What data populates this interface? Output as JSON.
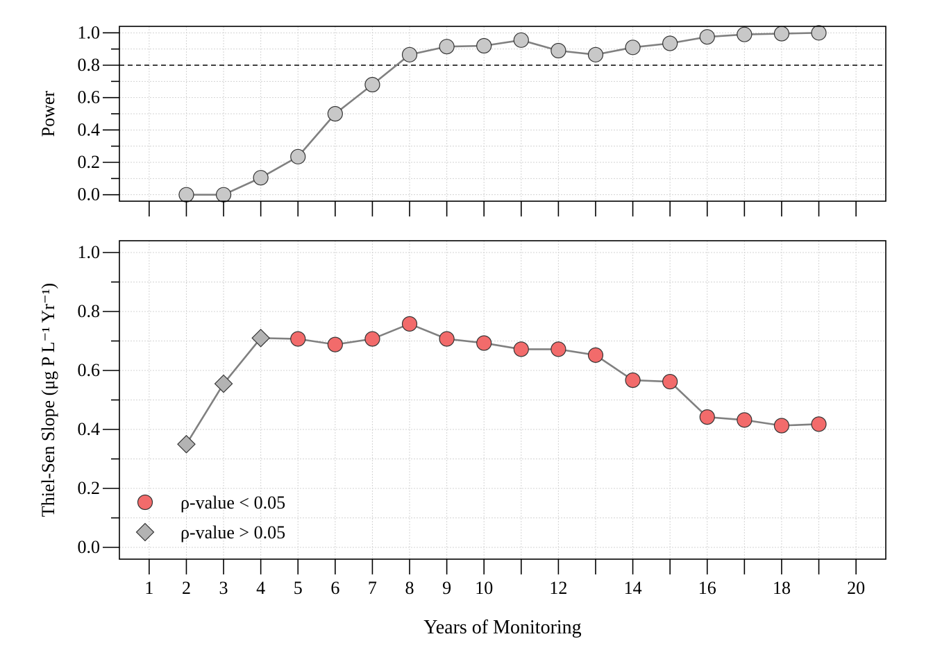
{
  "colors": {
    "significant_fill": "#F26B6B",
    "nonsignificant_fill": "#B3B3B3",
    "power_fill": "#C8C8C8",
    "line": "#808080",
    "grid": "#D3D3D3"
  },
  "chart_data": [
    {
      "type": "line",
      "ylabel": "Power",
      "xlabel": "",
      "xlim": [
        0.2,
        20.8
      ],
      "ylim": [
        -0.04,
        1.04
      ],
      "y_ticks": [
        "0.0",
        "0.2",
        "0.4",
        "0.6",
        "0.8",
        "1.0"
      ],
      "y_tick_values": [
        0,
        0.2,
        0.4,
        0.6,
        0.8,
        1.0
      ],
      "x_major_ticks": [
        1,
        2,
        3,
        4,
        5,
        6,
        7,
        8,
        9,
        10,
        11,
        12,
        13,
        14,
        15,
        16,
        17,
        18,
        19,
        20
      ],
      "grid": true,
      "reference_line": 0.8,
      "series": [
        {
          "marker": "circle",
          "x": [
            2,
            3,
            4,
            5,
            6,
            7,
            8,
            9,
            10,
            11,
            12,
            13,
            14,
            15,
            16,
            17,
            18,
            19
          ],
          "values": [
            0.0,
            0.0,
            0.105,
            0.235,
            0.5,
            0.68,
            0.865,
            0.915,
            0.92,
            0.955,
            0.89,
            0.865,
            0.91,
            0.935,
            0.975,
            0.99,
            0.995,
            1.0
          ]
        }
      ]
    },
    {
      "type": "line",
      "ylabel": "Thiel-Sen Slope (μg P L⁻¹ Yr⁻¹)",
      "xlabel": "Years of Monitoring",
      "xlim": [
        0.2,
        20.8
      ],
      "ylim": [
        -0.04,
        1.04
      ],
      "y_ticks": [
        "0.0",
        "0.2",
        "0.4",
        "0.6",
        "0.8",
        "1.0"
      ],
      "y_tick_values": [
        0,
        0.2,
        0.4,
        0.6,
        0.8,
        1.0
      ],
      "x_tick_labels": [
        "1",
        "2",
        "3",
        "4",
        "5",
        "6",
        "7",
        "8",
        "9",
        "10",
        "12",
        "14",
        "16",
        "18",
        "20"
      ],
      "x_tick_label_values": [
        1,
        2,
        3,
        4,
        5,
        6,
        7,
        8,
        9,
        10,
        12,
        14,
        16,
        18,
        20
      ],
      "x_major_ticks": [
        1,
        2,
        3,
        4,
        5,
        6,
        7,
        8,
        9,
        10,
        11,
        12,
        13,
        14,
        15,
        16,
        17,
        18,
        19,
        20
      ],
      "grid": true,
      "legend_position": "bottom-left",
      "legend": [
        {
          "label": "ρ-value < 0.05",
          "marker": "circle",
          "fill": "#F26B6B"
        },
        {
          "label": "ρ-value > 0.05",
          "marker": "diamond",
          "fill": "#B3B3B3"
        }
      ],
      "series": [
        {
          "x": [
            2,
            3,
            4,
            5,
            6,
            7,
            8,
            9,
            10,
            11,
            12,
            13,
            14,
            15,
            16,
            17,
            18,
            19
          ],
          "values": [
            0.35,
            0.555,
            0.71,
            0.707,
            0.688,
            0.707,
            0.758,
            0.707,
            0.693,
            0.672,
            0.672,
            0.652,
            0.567,
            0.562,
            0.442,
            0.432,
            0.413,
            0.418
          ],
          "significant": [
            false,
            false,
            false,
            true,
            true,
            true,
            true,
            true,
            true,
            true,
            true,
            true,
            true,
            true,
            true,
            true,
            true,
            true
          ]
        }
      ]
    }
  ]
}
